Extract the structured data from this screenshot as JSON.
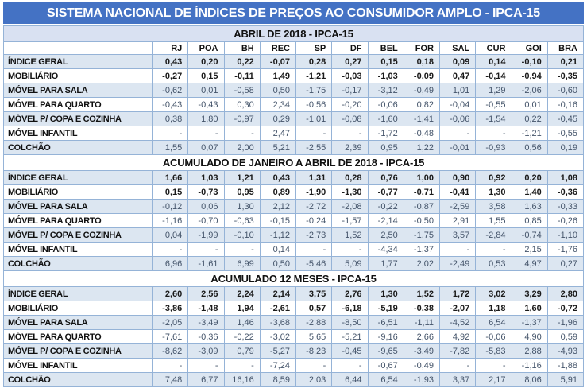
{
  "title": "SISTEMA NACIONAL DE ÍNDICES DE PREÇOS AO CONSUMIDOR AMPLO - IPCA-15",
  "colors": {
    "title_bar_bg": "#4472C4",
    "title_text": "#FFFFFF",
    "section1_header_bg": "#D9E1F2",
    "row_stripe_bg": "#DCE6F1",
    "cell_border": "#95B3D7",
    "bold_value_text": "#1A1A1A",
    "value_text": "#44546A"
  },
  "chart_data": {
    "type": "table",
    "title": "SISTEMA NACIONAL DE ÍNDICES DE PREÇOS AO CONSUMIDOR AMPLO - IPCA-15",
    "columns": [
      "RJ",
      "POA",
      "BH",
      "REC",
      "SP",
      "DF",
      "BEL",
      "FOR",
      "SAL",
      "CUR",
      "GOI",
      "BRA"
    ],
    "row_labels": [
      "ÍNDICE GERAL",
      "MOBILIÁRIO",
      "MÓVEL PARA SALA",
      "MÓVEL PARA QUARTO",
      "MÓVEL P/ COPA E COZINHA",
      "MÓVEL INFANTIL",
      "COLCHÃO"
    ],
    "sections": [
      {
        "header": "ABRIL DE 2018 - IPCA-15",
        "rows": [
          {
            "label": "ÍNDICE GERAL",
            "values": [
              "0,43",
              "0,20",
              "0,22",
              "-0,07",
              "0,28",
              "0,27",
              "0,15",
              "0,18",
              "0,09",
              "0,14",
              "-0,10",
              "0,21"
            ]
          },
          {
            "label": "MOBILIÁRIO",
            "values": [
              "-0,27",
              "0,15",
              "-0,11",
              "1,49",
              "-1,21",
              "-0,03",
              "-1,03",
              "-0,09",
              "0,47",
              "-0,14",
              "-0,94",
              "-0,35"
            ]
          },
          {
            "label": "MÓVEL PARA SALA",
            "values": [
              "-0,62",
              "0,01",
              "-0,58",
              "0,50",
              "-1,75",
              "-0,17",
              "-3,12",
              "-0,49",
              "1,01",
              "1,29",
              "-2,06",
              "-0,60"
            ]
          },
          {
            "label": "MÓVEL PARA QUARTO",
            "values": [
              "-0,43",
              "-0,43",
              "0,30",
              "2,34",
              "-0,56",
              "-0,20",
              "-0,06",
              "0,82",
              "-0,04",
              "-0,55",
              "0,01",
              "-0,16"
            ]
          },
          {
            "label": "MÓVEL P/ COPA E COZINHA",
            "values": [
              "0,38",
              "1,80",
              "-0,97",
              "0,29",
              "-1,01",
              "-0,08",
              "-1,60",
              "-1,41",
              "-0,06",
              "-1,54",
              "0,22",
              "-0,45"
            ]
          },
          {
            "label": "MÓVEL INFANTIL",
            "values": [
              "-",
              "-",
              "-",
              "2,47",
              "-",
              "-",
              "-1,72",
              "-0,48",
              "-",
              "-",
              "-1,21",
              "-0,55"
            ]
          },
          {
            "label": "COLCHÃO",
            "values": [
              "1,55",
              "0,07",
              "2,00",
              "5,21",
              "-2,55",
              "2,39",
              "0,95",
              "1,22",
              "-0,01",
              "-0,93",
              "0,56",
              "0,19"
            ]
          }
        ]
      },
      {
        "header": "ACUMULADO DE JANEIRO A ABRIL DE 2018 - IPCA-15",
        "rows": [
          {
            "label": "ÍNDICE GERAL",
            "values": [
              "1,66",
              "1,03",
              "1,21",
              "0,43",
              "1,31",
              "0,28",
              "0,76",
              "1,00",
              "0,90",
              "0,92",
              "0,20",
              "1,08"
            ]
          },
          {
            "label": "MOBILIÁRIO",
            "values": [
              "0,15",
              "-0,73",
              "0,95",
              "0,89",
              "-1,90",
              "-1,30",
              "-0,77",
              "-0,71",
              "-0,41",
              "1,30",
              "1,40",
              "-0,36"
            ]
          },
          {
            "label": "MÓVEL PARA SALA",
            "values": [
              "-0,12",
              "0,06",
              "1,30",
              "2,12",
              "-2,72",
              "-2,08",
              "-0,22",
              "-0,87",
              "-2,59",
              "3,58",
              "1,63",
              "-0,33"
            ]
          },
          {
            "label": "MÓVEL PARA QUARTO",
            "values": [
              "-1,16",
              "-0,70",
              "-0,63",
              "-0,15",
              "-0,24",
              "-1,57",
              "-2,14",
              "-0,50",
              "2,91",
              "1,55",
              "0,85",
              "-0,26"
            ]
          },
          {
            "label": "MÓVEL P/ COPA E COZINHA",
            "values": [
              "0,04",
              "-1,99",
              "-0,10",
              "-1,12",
              "-2,73",
              "1,52",
              "2,50",
              "-1,75",
              "3,57",
              "-2,84",
              "-0,74",
              "-1,10"
            ]
          },
          {
            "label": "MÓVEL INFANTIL",
            "values": [
              "-",
              "-",
              "-",
              "0,14",
              "-",
              "-",
              "-4,34",
              "-1,37",
              "-",
              "-",
              "2,15",
              "-1,76"
            ]
          },
          {
            "label": "COLCHÃO",
            "values": [
              "6,96",
              "-1,61",
              "6,99",
              "0,50",
              "-5,46",
              "5,09",
              "1,77",
              "2,02",
              "-2,49",
              "0,53",
              "4,97",
              "0,27"
            ]
          }
        ]
      },
      {
        "header": "ACUMULADO 12 MESES - IPCA-15",
        "rows": [
          {
            "label": "ÍNDICE GERAL",
            "values": [
              "2,60",
              "2,56",
              "2,24",
              "2,14",
              "3,75",
              "2,76",
              "1,30",
              "1,52",
              "1,72",
              "3,02",
              "3,29",
              "2,80"
            ]
          },
          {
            "label": "MOBILIÁRIO",
            "values": [
              "-3,86",
              "-1,48",
              "1,94",
              "-2,61",
              "0,57",
              "-6,18",
              "-5,19",
              "-0,38",
              "-2,07",
              "1,18",
              "1,60",
              "-0,72"
            ]
          },
          {
            "label": "MÓVEL PARA SALA",
            "values": [
              "-2,05",
              "-3,49",
              "1,46",
              "-3,68",
              "-2,88",
              "-8,50",
              "-6,51",
              "-1,11",
              "-4,52",
              "6,54",
              "-1,37",
              "-1,96"
            ]
          },
          {
            "label": "MÓVEL PARA QUARTO",
            "values": [
              "-7,61",
              "-0,36",
              "-0,22",
              "-3,02",
              "5,65",
              "-5,21",
              "-9,16",
              "2,66",
              "4,92",
              "-0,06",
              "4,90",
              "0,59"
            ]
          },
          {
            "label": "MÓVEL P/ COPA E COZINHA",
            "values": [
              "-8,62",
              "-3,09",
              "0,79",
              "-5,27",
              "-8,23",
              "-0,45",
              "-9,65",
              "-3,49",
              "-7,82",
              "-5,83",
              "2,88",
              "-4,93"
            ]
          },
          {
            "label": "MÓVEL INFANTIL",
            "values": [
              "-",
              "-",
              "-",
              "-7,24",
              "-",
              "-",
              "-0,67",
              "-0,49",
              "-",
              "-",
              "-1,16",
              "-1,88"
            ]
          },
          {
            "label": "COLCHÃO",
            "values": [
              "7,48",
              "6,77",
              "16,16",
              "8,59",
              "2,03",
              "6,44",
              "6,54",
              "-1,93",
              "3,37",
              "2,17",
              "8,06",
              "5,91"
            ]
          }
        ]
      }
    ]
  }
}
